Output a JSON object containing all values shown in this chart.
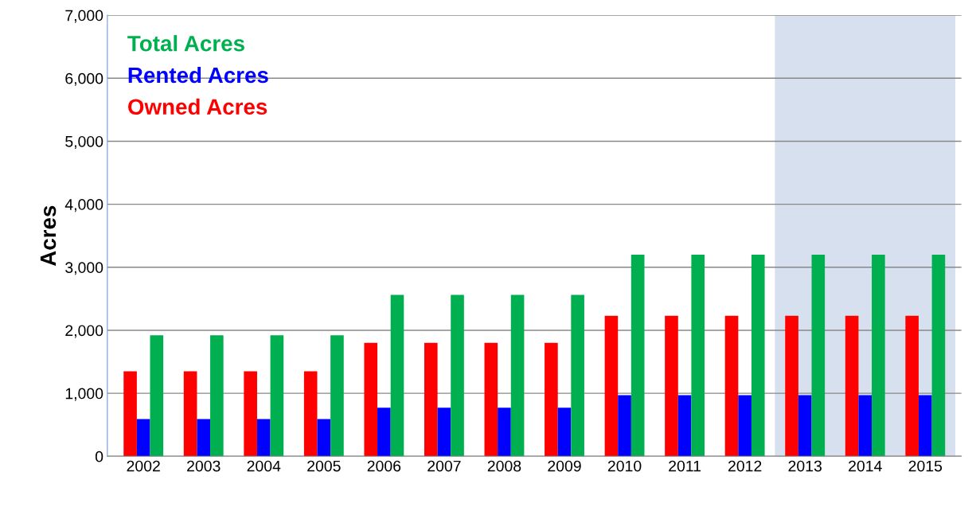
{
  "chart_data": {
    "type": "bar",
    "ylabel": "Acres",
    "categories": [
      "2002",
      "2003",
      "2004",
      "2005",
      "2006",
      "2007",
      "2008",
      "2009",
      "2010",
      "2011",
      "2012",
      "2013",
      "2014",
      "2015"
    ],
    "series": [
      {
        "name": "Owned Acres",
        "color": "#ff0000",
        "values": [
          1350,
          1350,
          1350,
          1350,
          1800,
          1800,
          1800,
          1800,
          2230,
          2230,
          2230,
          2230,
          2230,
          2230
        ]
      },
      {
        "name": "Rented Acres",
        "color": "#0000ff",
        "values": [
          590,
          590,
          590,
          590,
          770,
          770,
          770,
          770,
          970,
          970,
          970,
          970,
          970,
          970
        ]
      },
      {
        "name": "Total Acres",
        "color": "#00b050",
        "values": [
          1920,
          1920,
          1920,
          1920,
          2560,
          2560,
          2560,
          2560,
          3200,
          3200,
          3200,
          3200,
          3200,
          3200
        ]
      }
    ],
    "bands": [
      {
        "axis": "x",
        "from": "2013",
        "to": "2015",
        "color": "#d6e0ee"
      }
    ],
    "ylim": [
      0,
      7000
    ],
    "yticks": [
      {
        "value": 0,
        "label": "0"
      },
      {
        "value": 1000,
        "label": "1,000"
      },
      {
        "value": 2000,
        "label": "2,000"
      },
      {
        "value": 3000,
        "label": "3,000"
      },
      {
        "value": 4000,
        "label": "4,000"
      },
      {
        "value": 5000,
        "label": "5,000"
      },
      {
        "value": 6000,
        "label": "6,000"
      },
      {
        "value": 7000,
        "label": "7,000"
      }
    ],
    "grid": "y",
    "legend": "top left"
  }
}
